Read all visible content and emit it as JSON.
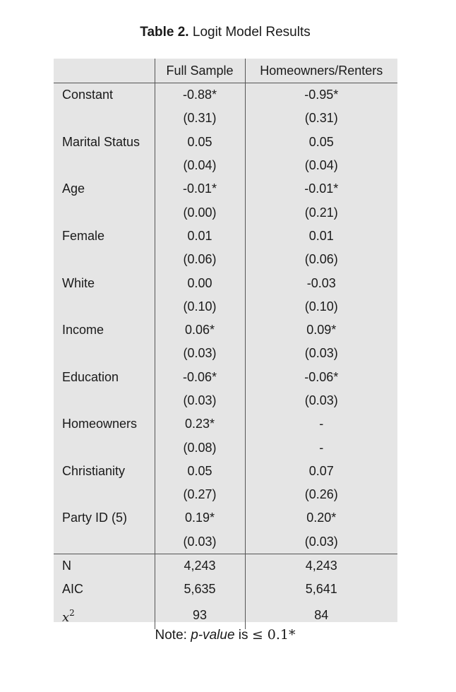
{
  "caption": {
    "label": "Table 2.",
    "title": " Logit Model Results"
  },
  "table": {
    "columns": [
      "",
      "Full Sample",
      "Homeowners/Renters"
    ],
    "rows": [
      {
        "label": "Constant",
        "full": "-0.88*",
        "home": "-0.95*"
      },
      {
        "label": "",
        "full": "(0.31)",
        "home": "(0.31)"
      },
      {
        "label": "Marital Status",
        "full": "0.05",
        "home": "0.05"
      },
      {
        "label": "",
        "full": "(0.04)",
        "home": "(0.04)"
      },
      {
        "label": "Age",
        "full": "-0.01*",
        "home": "-0.01*"
      },
      {
        "label": "",
        "full": "(0.00)",
        "home": "(0.21)"
      },
      {
        "label": "Female",
        "full": "0.01",
        "home": "0.01"
      },
      {
        "label": "",
        "full": "(0.06)",
        "home": "(0.06)"
      },
      {
        "label": "White",
        "full": "0.00",
        "home": "-0.03"
      },
      {
        "label": "",
        "full": "(0.10)",
        "home": "(0.10)"
      },
      {
        "label": "Income",
        "full": "0.06*",
        "home": "0.09*"
      },
      {
        "label": "",
        "full": "(0.03)",
        "home": "(0.03)"
      },
      {
        "label": "Education",
        "full": "-0.06*",
        "home": "-0.06*"
      },
      {
        "label": "",
        "full": "(0.03)",
        "home": "(0.03)"
      },
      {
        "label": "Homeowners",
        "full": "0.23*",
        "home": "-"
      },
      {
        "label": "",
        "full": "(0.08)",
        "home": "-"
      },
      {
        "label": "Christianity",
        "full": "0.05",
        "home": "0.07"
      },
      {
        "label": "",
        "full": "(0.27)",
        "home": "(0.26)"
      },
      {
        "label": "Party ID (5)",
        "full": "0.19*",
        "home": "0.20*"
      },
      {
        "label": "",
        "full": "(0.03)",
        "home": "(0.03)"
      }
    ],
    "stats": [
      {
        "label": "N",
        "full": "4,243",
        "home": "4,243"
      },
      {
        "label": "AIC",
        "full": "5,635",
        "home": "5,641"
      },
      {
        "label_var": "x",
        "label_sup": "2",
        "full": "93",
        "home": "84"
      }
    ]
  },
  "note": {
    "prefix": "Note: ",
    "pvalue": "p-value",
    "middle": " is ",
    "math": "≤ 0.1*"
  },
  "colors": {
    "table_bg": "#e5e5e5",
    "rule": "#555555",
    "text": "#1a1a1a"
  }
}
